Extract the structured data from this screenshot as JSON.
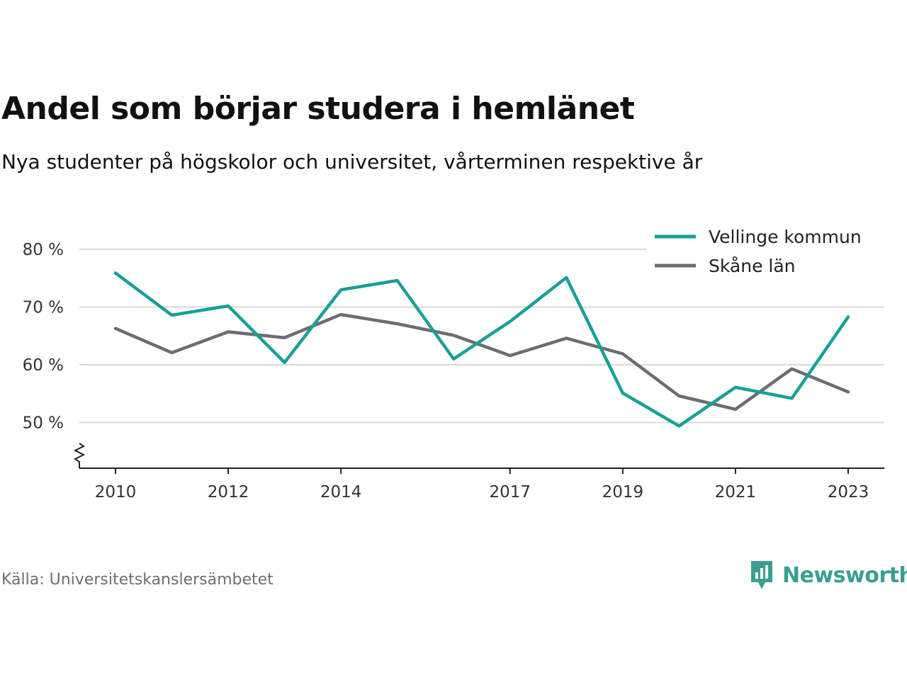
{
  "chart_data": {
    "type": "line",
    "title": "Andel som börjar studera i hemlänet",
    "subtitle": "Nya studenter på högskolor och universitet, vårterminen respektive år",
    "xlabel": "",
    "ylabel": "",
    "x": [
      2010,
      2011,
      2012,
      2013,
      2014,
      2015,
      2016,
      2017,
      2018,
      2019,
      2020,
      2021,
      2022,
      2023
    ],
    "x_ticks": [
      "2010",
      "2012",
      "2014",
      "2017",
      "2019",
      "2021",
      "2023"
    ],
    "y_ticks": [
      "80 %",
      "70 %",
      "60 %",
      "50 %"
    ],
    "ylim": [
      42,
      82
    ],
    "grid": true,
    "legend_position": "top-right",
    "series": [
      {
        "name": "Vellinge kommun",
        "color": "#17a096",
        "values": [
          75.9,
          68.6,
          70.2,
          60.4,
          73.0,
          74.6,
          61.0,
          67.5,
          75.1,
          55.1,
          49.4,
          56.1,
          54.2,
          68.3
        ]
      },
      {
        "name": "Skåne län",
        "color": "#6d6b73",
        "values": [
          66.3,
          62.1,
          65.7,
          64.7,
          68.7,
          67.1,
          65.1,
          61.6,
          64.6,
          61.9,
          54.6,
          52.3,
          59.3,
          55.3
        ]
      }
    ]
  },
  "source": "Källa: Universitetskanslersämbetet",
  "logo": {
    "text": "Newsworthy",
    "color": "#3a9e93"
  }
}
